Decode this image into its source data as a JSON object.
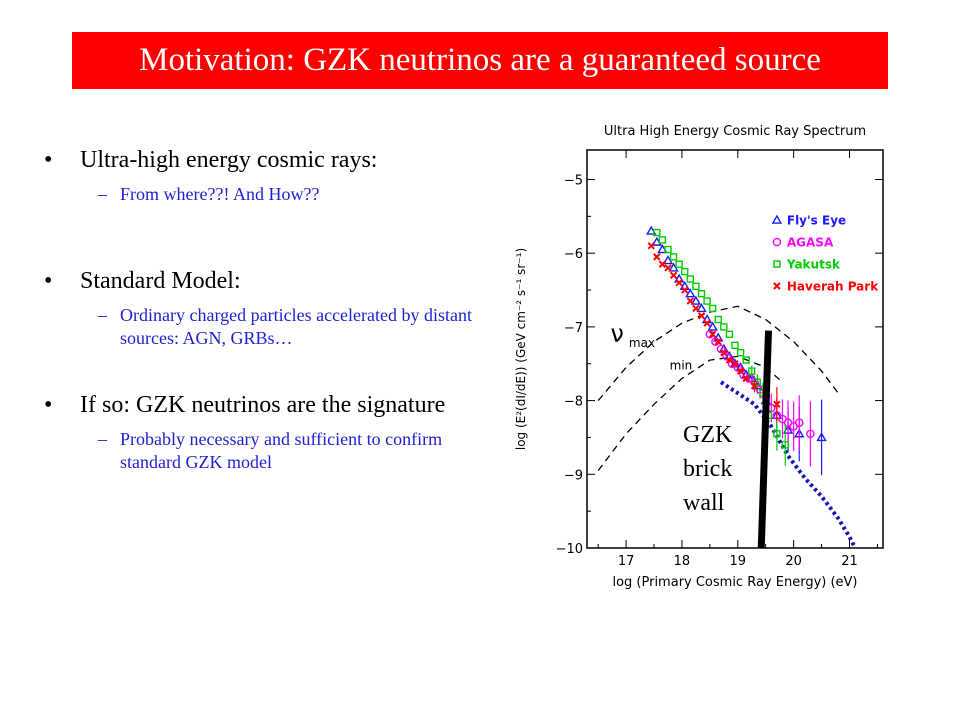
{
  "slide": {
    "title": "Motivation: GZK neutrinos are a guaranteed source",
    "bullets": [
      {
        "text": "Ultra-high energy cosmic rays:",
        "sub": [
          "From where??! And How??"
        ]
      },
      {
        "text": "Standard Model:",
        "sub": [
          "Ordinary charged particles accelerated by distant sources: AGN, GRBs…"
        ]
      },
      {
        "text": "If so: GZK neutrinos are the signature",
        "sub": [
          "Probably necessary and sufficient to confirm standard GZK model"
        ]
      }
    ],
    "annotation": {
      "lines": [
        "GZK",
        "brick",
        "wall"
      ]
    }
  },
  "chart_data": {
    "type": "scatter",
    "title": "Ultra High Energy Cosmic Ray Spectrum",
    "xlabel": "log (Primary Cosmic Ray Energy) (eV)",
    "ylabel": "log (E²(dI/dE)) (GeV cm⁻² s⁻¹ sr⁻¹)",
    "xlim": [
      16.3,
      21.6
    ],
    "ylim": [
      -10,
      -4.6
    ],
    "x_ticks": [
      17,
      18,
      19,
      20,
      21
    ],
    "y_ticks": [
      -5,
      -6,
      -7,
      -8,
      -9,
      -10
    ],
    "legend_placement": "top-right",
    "nu_labels": {
      "symbol": "ν",
      "max": "max",
      "min": "min"
    },
    "series": [
      {
        "name": "Fly's Eye",
        "marker": "triangle",
        "color": "#1a1aff",
        "points": [
          [
            17.45,
            -5.7
          ],
          [
            17.55,
            -5.85
          ],
          [
            17.65,
            -5.95
          ],
          [
            17.75,
            -6.1
          ],
          [
            17.85,
            -6.2
          ],
          [
            17.95,
            -6.35
          ],
          [
            18.05,
            -6.45
          ],
          [
            18.15,
            -6.55
          ],
          [
            18.25,
            -6.65
          ],
          [
            18.35,
            -6.75
          ],
          [
            18.45,
            -6.9
          ],
          [
            18.55,
            -7.0
          ],
          [
            18.65,
            -7.15
          ],
          [
            18.75,
            -7.3
          ],
          [
            18.85,
            -7.4
          ],
          [
            18.95,
            -7.5
          ],
          [
            19.05,
            -7.55
          ],
          [
            19.15,
            -7.65
          ],
          [
            19.25,
            -7.7
          ],
          [
            19.35,
            -7.8
          ],
          [
            19.5,
            -8.0
          ],
          [
            19.7,
            -8.2
          ],
          [
            19.9,
            -8.4
          ],
          [
            20.1,
            -8.45
          ],
          [
            20.5,
            -8.5
          ]
        ]
      },
      {
        "name": "AGASA",
        "marker": "circle",
        "color": "#ff00ff",
        "points": [
          [
            18.5,
            -7.1
          ],
          [
            18.6,
            -7.2
          ],
          [
            18.7,
            -7.3
          ],
          [
            18.8,
            -7.4
          ],
          [
            18.9,
            -7.5
          ],
          [
            19.0,
            -7.55
          ],
          [
            19.1,
            -7.65
          ],
          [
            19.2,
            -7.7
          ],
          [
            19.3,
            -7.75
          ],
          [
            19.4,
            -7.85
          ],
          [
            19.5,
            -7.95
          ],
          [
            19.6,
            -8.1
          ],
          [
            19.7,
            -8.2
          ],
          [
            19.8,
            -8.25
          ],
          [
            19.9,
            -8.3
          ],
          [
            20.0,
            -8.35
          ],
          [
            20.1,
            -8.3
          ],
          [
            20.3,
            -8.45
          ]
        ]
      },
      {
        "name": "Yakutsk",
        "marker": "square",
        "color": "#00cc00",
        "points": [
          [
            17.55,
            -5.72
          ],
          [
            17.65,
            -5.82
          ],
          [
            17.75,
            -5.95
          ],
          [
            17.85,
            -6.05
          ],
          [
            17.95,
            -6.15
          ],
          [
            18.05,
            -6.25
          ],
          [
            18.15,
            -6.35
          ],
          [
            18.25,
            -6.45
          ],
          [
            18.35,
            -6.55
          ],
          [
            18.45,
            -6.65
          ],
          [
            18.55,
            -6.75
          ],
          [
            18.65,
            -6.9
          ],
          [
            18.75,
            -7.0
          ],
          [
            18.85,
            -7.1
          ],
          [
            18.95,
            -7.25
          ],
          [
            19.05,
            -7.35
          ],
          [
            19.15,
            -7.45
          ],
          [
            19.25,
            -7.6
          ],
          [
            19.35,
            -7.75
          ],
          [
            19.45,
            -7.9
          ],
          [
            19.55,
            -8.2
          ],
          [
            19.7,
            -8.45
          ],
          [
            19.85,
            -8.6
          ]
        ]
      },
      {
        "name": "Haverah Park",
        "marker": "x",
        "color": "#ff0000",
        "points": [
          [
            17.45,
            -5.9
          ],
          [
            17.55,
            -6.05
          ],
          [
            17.65,
            -6.15
          ],
          [
            17.75,
            -6.2
          ],
          [
            17.85,
            -6.3
          ],
          [
            17.95,
            -6.4
          ],
          [
            18.05,
            -6.5
          ],
          [
            18.15,
            -6.65
          ],
          [
            18.25,
            -6.75
          ],
          [
            18.35,
            -6.85
          ],
          [
            18.45,
            -6.95
          ],
          [
            18.55,
            -7.1
          ],
          [
            18.65,
            -7.2
          ],
          [
            18.75,
            -7.35
          ],
          [
            18.85,
            -7.45
          ],
          [
            18.95,
            -7.5
          ],
          [
            19.05,
            -7.6
          ],
          [
            19.15,
            -7.7
          ],
          [
            19.3,
            -7.8
          ],
          [
            19.5,
            -7.9
          ],
          [
            19.7,
            -8.05
          ]
        ]
      }
    ],
    "curves": {
      "nu_max": [
        [
          16.5,
          -8.0
        ],
        [
          17.0,
          -7.55
        ],
        [
          17.5,
          -7.2
        ],
        [
          18.0,
          -6.95
        ],
        [
          18.5,
          -6.8
        ],
        [
          19.0,
          -6.72
        ],
        [
          19.5,
          -6.9
        ],
        [
          20.0,
          -7.2
        ],
        [
          20.5,
          -7.6
        ],
        [
          20.8,
          -7.9
        ]
      ],
      "nu_min": [
        [
          16.5,
          -8.95
        ],
        [
          17.0,
          -8.45
        ],
        [
          17.5,
          -8.05
        ],
        [
          18.0,
          -7.7
        ],
        [
          18.5,
          -7.45
        ],
        [
          19.0,
          -7.4
        ],
        [
          19.5,
          -7.55
        ],
        [
          19.8,
          -7.75
        ]
      ],
      "gzk_prediction": [
        [
          18.7,
          -7.75
        ],
        [
          19.0,
          -7.9
        ],
        [
          19.3,
          -8.05
        ],
        [
          19.6,
          -8.35
        ],
        [
          19.9,
          -8.75
        ],
        [
          20.2,
          -9.05
        ],
        [
          20.5,
          -9.3
        ],
        [
          20.8,
          -9.6
        ],
        [
          21.0,
          -9.85
        ],
        [
          21.1,
          -10.0
        ]
      ],
      "brick_wall": [
        [
          19.55,
          -7.05
        ],
        [
          19.42,
          -10.0
        ]
      ]
    }
  }
}
